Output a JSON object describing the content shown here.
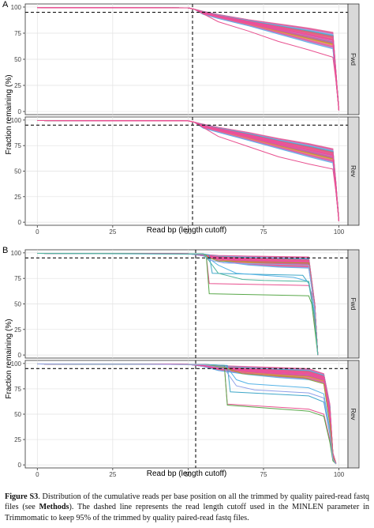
{
  "caption": {
    "label": "Figure S3",
    "text_before": ". Distribution of the cumulative reads per base position on all the trimmed by quality paired-read fastq files (see ",
    "bold_word": "Methods",
    "text_after": "). The dashed line represents the read length cutoff used in the MINLEN parameter in Trimmomatic to keep 95% of the trimmed by quality paired-read fastq files."
  },
  "chart_data": [
    {
      "type": "line",
      "panel_label": "A",
      "xlabel": "Read bp (length cutoff)",
      "ylabel": "Fraction remaining (%)",
      "xlim": [
        -4,
        103
      ],
      "ylim": [
        -3,
        103
      ],
      "x_ticks": [
        "0",
        "25",
        "50",
        "75",
        "100"
      ],
      "y_ticks": [
        "0",
        "25",
        "50",
        "75",
        "100"
      ],
      "grid": true,
      "hline_y": 95,
      "vline_x": 52.5,
      "facets": [
        {
          "strip": "Fwd",
          "envelope": {
            "x": [
              0,
              50,
              52,
              55,
              60,
              70,
              80,
              90,
              98,
              99,
              100
            ],
            "upper": [
              99.5,
              99.2,
              98,
              96,
              93,
              88,
              84,
              80,
              76,
              40,
              1
            ],
            "lower": [
              99.5,
              99.2,
              98,
              93,
              89,
              82,
              74,
              66,
              60,
              30,
              1
            ]
          },
          "outliers": [
            {
              "x": [
                0,
                50,
                52,
                60,
                70,
                80,
                90,
                98,
                99,
                100
              ],
              "y": [
                99.5,
                99.2,
                98,
                86,
                77,
                67,
                59,
                52,
                30,
                1
              ]
            }
          ]
        },
        {
          "strip": "Rev",
          "envelope": {
            "x": [
              0,
              50,
              52,
              55,
              60,
              70,
              80,
              90,
              98,
              99,
              100
            ],
            "upper": [
              99.5,
              99.2,
              98,
              96,
              93,
              88,
              82,
              77,
              72,
              40,
              1
            ],
            "lower": [
              99.5,
              99.2,
              98,
              92,
              88,
              80,
              72,
              64,
              58,
              30,
              1
            ]
          },
          "outliers": [
            {
              "x": [
                0,
                50,
                52,
                60,
                70,
                80,
                90,
                98,
                99,
                100
              ],
              "y": [
                99.5,
                99.2,
                98,
                84,
                74,
                64,
                57,
                52,
                30,
                1
              ]
            }
          ]
        }
      ]
    },
    {
      "type": "line",
      "panel_label": "B",
      "xlabel": "Read bp (length cutoff)",
      "ylabel": "Fraction remaining (%)",
      "xlim": [
        -4,
        103
      ],
      "ylim": [
        -3,
        103
      ],
      "x_ticks": [
        "0",
        "25",
        "50",
        "75",
        "100"
      ],
      "y_ticks": [
        "0",
        "25",
        "50",
        "75",
        "100"
      ],
      "grid": true,
      "hline_y": 95,
      "vline_x": 53.5,
      "facets": [
        {
          "strip": "Fwd",
          "envelope": {
            "x": [
              0,
              50,
              55,
              60,
              70,
              80,
              90,
              92,
              93
            ],
            "upper": [
              99.5,
              99.2,
              98.5,
              97.5,
              97,
              96.5,
              96,
              50,
              0
            ],
            "lower": [
              99.5,
              99.2,
              97,
              92,
              88,
              86,
              85,
              45,
              0
            ]
          },
          "outliers": [
            {
              "x": [
                0,
                55,
                56,
                57,
                90,
                91,
                92,
                93
              ],
              "y": [
                99.5,
                99,
                98,
                70,
                68,
                60,
                30,
                0
              ]
            },
            {
              "x": [
                0,
                55,
                56,
                57,
                90,
                91,
                92,
                93
              ],
              "y": [
                99.5,
                99,
                98,
                60,
                58,
                50,
                25,
                0
              ]
            },
            {
              "x": [
                0,
                55,
                57,
                58,
                88,
                90,
                92,
                93
              ],
              "y": [
                99.5,
                99,
                98,
                80,
                78,
                70,
                35,
                0
              ]
            },
            {
              "x": [
                0,
                55,
                60,
                66,
                75,
                85,
                90,
                92,
                93
              ],
              "y": [
                99.5,
                98.5,
                88,
                80,
                78,
                76,
                72,
                40,
                0
              ]
            },
            {
              "x": [
                0,
                55,
                57,
                60,
                90,
                92,
                93
              ],
              "y": [
                99.5,
                99,
                95,
                92,
                90,
                45,
                0
              ]
            },
            {
              "x": [
                0,
                55,
                57,
                62,
                90,
                92,
                93
              ],
              "y": [
                99.5,
                99,
                93,
                90,
                88,
                44,
                0
              ]
            },
            {
              "x": [
                0,
                55,
                57,
                60,
                68,
                75,
                90,
                92,
                93
              ],
              "y": [
                99.5,
                99,
                92,
                80,
                74,
                73,
                72,
                36,
                0
              ]
            }
          ]
        },
        {
          "strip": "Rev",
          "envelope": {
            "x": [
              0,
              50,
              55,
              60,
              70,
              80,
              90,
              95,
              97,
              98,
              99
            ],
            "upper": [
              99.5,
              99.2,
              98.5,
              98,
              97,
              96,
              95,
              90,
              60,
              12,
              2
            ],
            "lower": [
              99.5,
              99.2,
              97,
              93,
              89,
              86,
              84,
              80,
              40,
              8,
              1
            ]
          },
          "outliers": [
            {
              "x": [
                0,
                55,
                62,
                63,
                90,
                95,
                97,
                98,
                99
              ],
              "y": [
                99.5,
                99,
                98,
                60,
                55,
                50,
                25,
                5,
                1
              ]
            },
            {
              "x": [
                0,
                55,
                62,
                63,
                90,
                95,
                97,
                98,
                99
              ],
              "y": [
                99.5,
                99,
                98,
                59,
                53,
                48,
                22,
                4,
                1
              ]
            },
            {
              "x": [
                0,
                55,
                63,
                64,
                90,
                95,
                97,
                98,
                99
              ],
              "y": [
                99.5,
                99,
                98,
                72,
                68,
                62,
                30,
                6,
                1
              ]
            },
            {
              "x": [
                0,
                55,
                63,
                66,
                70,
                90,
                95,
                97,
                98,
                99
              ],
              "y": [
                99.5,
                99,
                96,
                84,
                80,
                76,
                70,
                35,
                7,
                1
              ]
            },
            {
              "x": [
                0,
                55,
                62,
                68,
                88,
                95,
                97,
                98,
                99
              ],
              "y": [
                99.5,
                99,
                96,
                90,
                86,
                80,
                40,
                8,
                1
              ]
            },
            {
              "x": [
                0,
                55,
                62,
                66,
                72,
                90,
                95,
                97,
                98,
                99
              ],
              "y": [
                99.5,
                99,
                95,
                78,
                74,
                71,
                66,
                32,
                6,
                1
              ]
            }
          ]
        }
      ]
    }
  ]
}
